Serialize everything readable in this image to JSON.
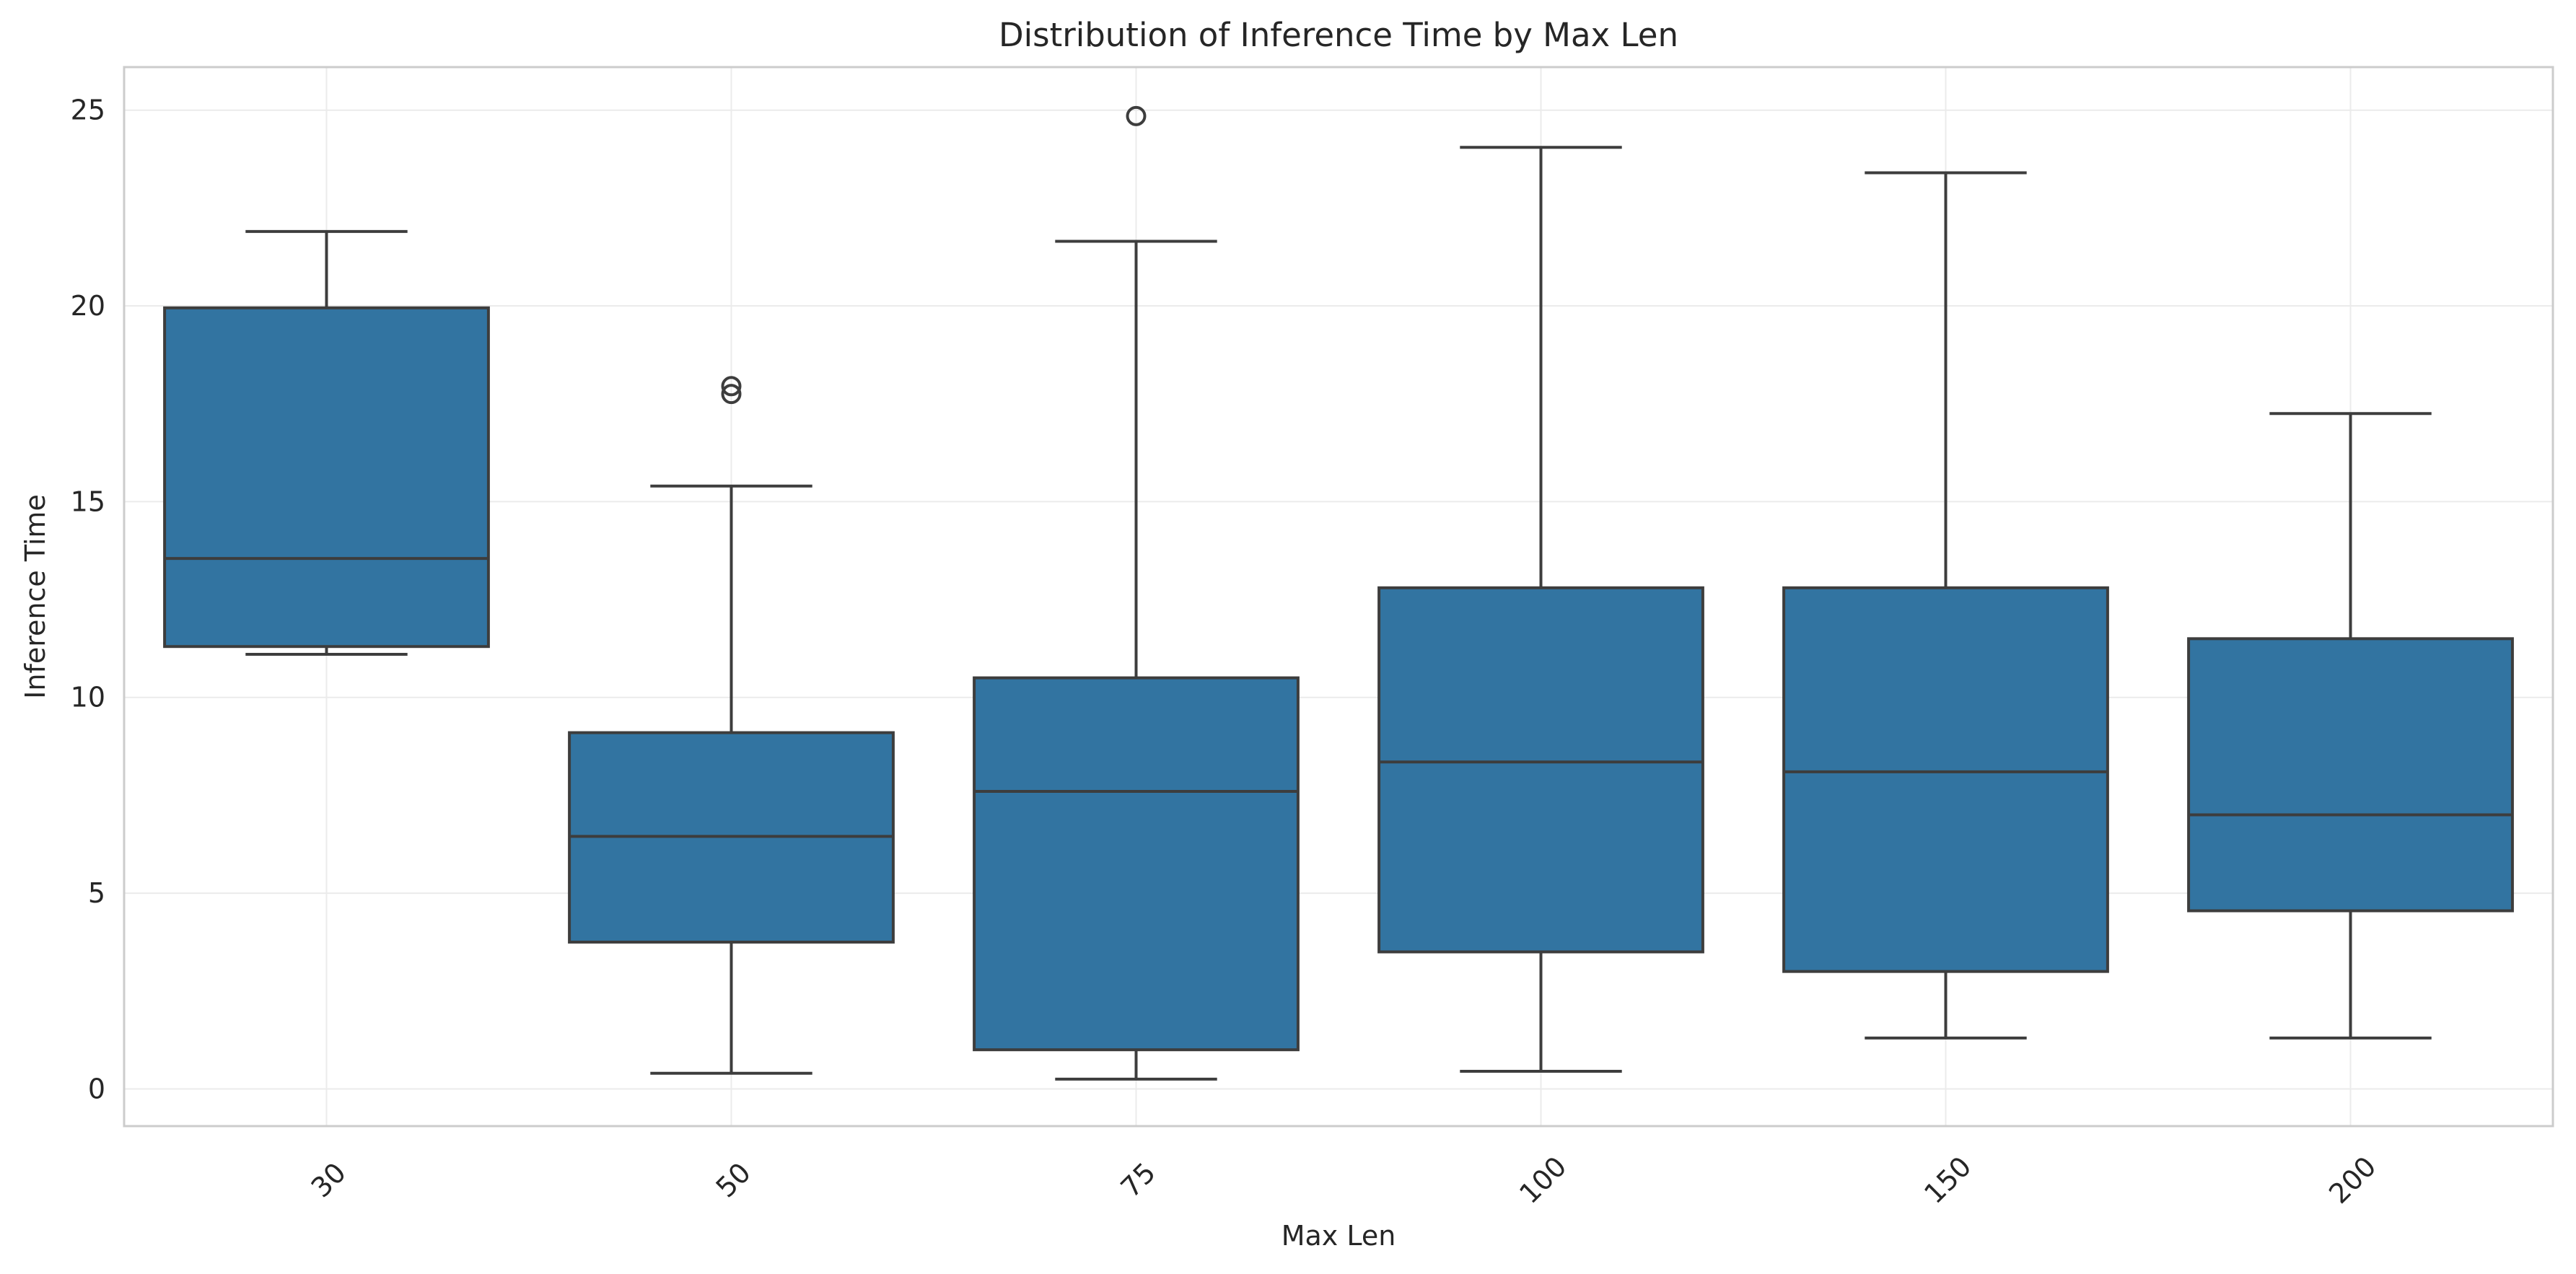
{
  "chart_data": {
    "type": "box",
    "title": "Distribution of Inference Time by Max Len",
    "xlabel": "Max Len",
    "ylabel": "Inference Time",
    "categories": [
      "30",
      "50",
      "75",
      "100",
      "150",
      "200"
    ],
    "boxes": [
      {
        "category": "30",
        "whisker_low": 11.1,
        "q1": 11.3,
        "median": 13.55,
        "q3": 19.95,
        "whisker_high": 21.9,
        "outliers": []
      },
      {
        "category": "50",
        "whisker_low": 0.4,
        "q1": 3.75,
        "median": 6.45,
        "q3": 9.1,
        "whisker_high": 15.4,
        "outliers": [
          17.75,
          17.95
        ]
      },
      {
        "category": "75",
        "whisker_low": 0.25,
        "q1": 1.0,
        "median": 7.6,
        "q3": 10.5,
        "whisker_high": 21.65,
        "outliers": [
          24.85
        ]
      },
      {
        "category": "100",
        "whisker_low": 0.45,
        "q1": 3.5,
        "median": 8.35,
        "q3": 12.8,
        "whisker_high": 24.05,
        "outliers": []
      },
      {
        "category": "150",
        "whisker_low": 1.3,
        "q1": 3.0,
        "median": 8.1,
        "q3": 12.8,
        "whisker_high": 23.4,
        "outliers": []
      },
      {
        "category": "200",
        "whisker_low": 1.3,
        "q1": 4.55,
        "median": 7.0,
        "q3": 11.5,
        "whisker_high": 17.25,
        "outliers": []
      }
    ],
    "yticks": [
      0,
      5,
      10,
      15,
      20,
      25
    ],
    "ylim": [
      -0.95,
      26.1
    ],
    "grid": true,
    "x_tick_rotation": 45,
    "box_color": "#3274a1",
    "line_color": "#3d3d3d"
  }
}
